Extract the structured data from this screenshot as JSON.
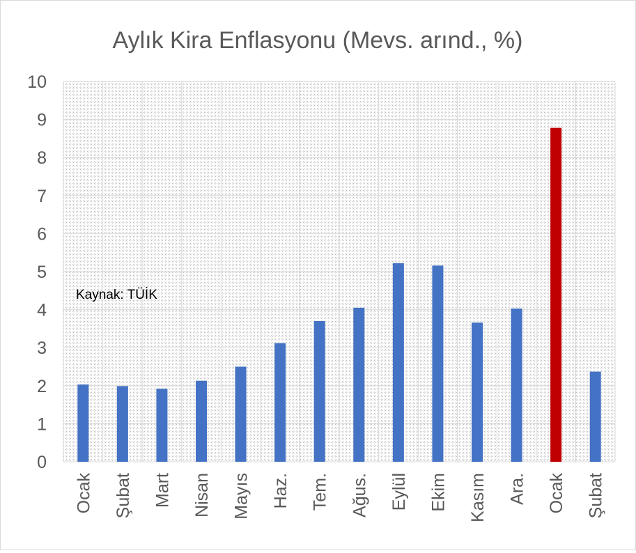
{
  "chart_data": {
    "type": "bar",
    "title": "Aylık Kira Enflasyonu (Mevs. arınd., %)",
    "xlabel": "",
    "ylabel": "",
    "ylim": [
      0,
      10
    ],
    "yticks": [
      0,
      1,
      2,
      3,
      4,
      5,
      6,
      7,
      8,
      9,
      10
    ],
    "grid": true,
    "legend": "none",
    "categories": [
      "Ocak",
      "Şubat",
      "Mart",
      "Nisan",
      "Mayıs",
      "Haz.",
      "Tem.",
      "Ağus.",
      "Eylül",
      "Ekim",
      "Kasım",
      "Ara.",
      "Ocak",
      "Şubat"
    ],
    "values": [
      2.03,
      1.99,
      1.92,
      2.13,
      2.5,
      3.12,
      3.7,
      4.05,
      5.22,
      5.16,
      3.66,
      4.03,
      8.78,
      2.37
    ],
    "colors": [
      "#4472C4",
      "#4472C4",
      "#4472C4",
      "#4472C4",
      "#4472C4",
      "#4472C4",
      "#4472C4",
      "#4472C4",
      "#4472C4",
      "#4472C4",
      "#4472C4",
      "#4472C4",
      "#C00000",
      "#4472C4"
    ],
    "annotation": "Kaynak: TÜİK"
  }
}
